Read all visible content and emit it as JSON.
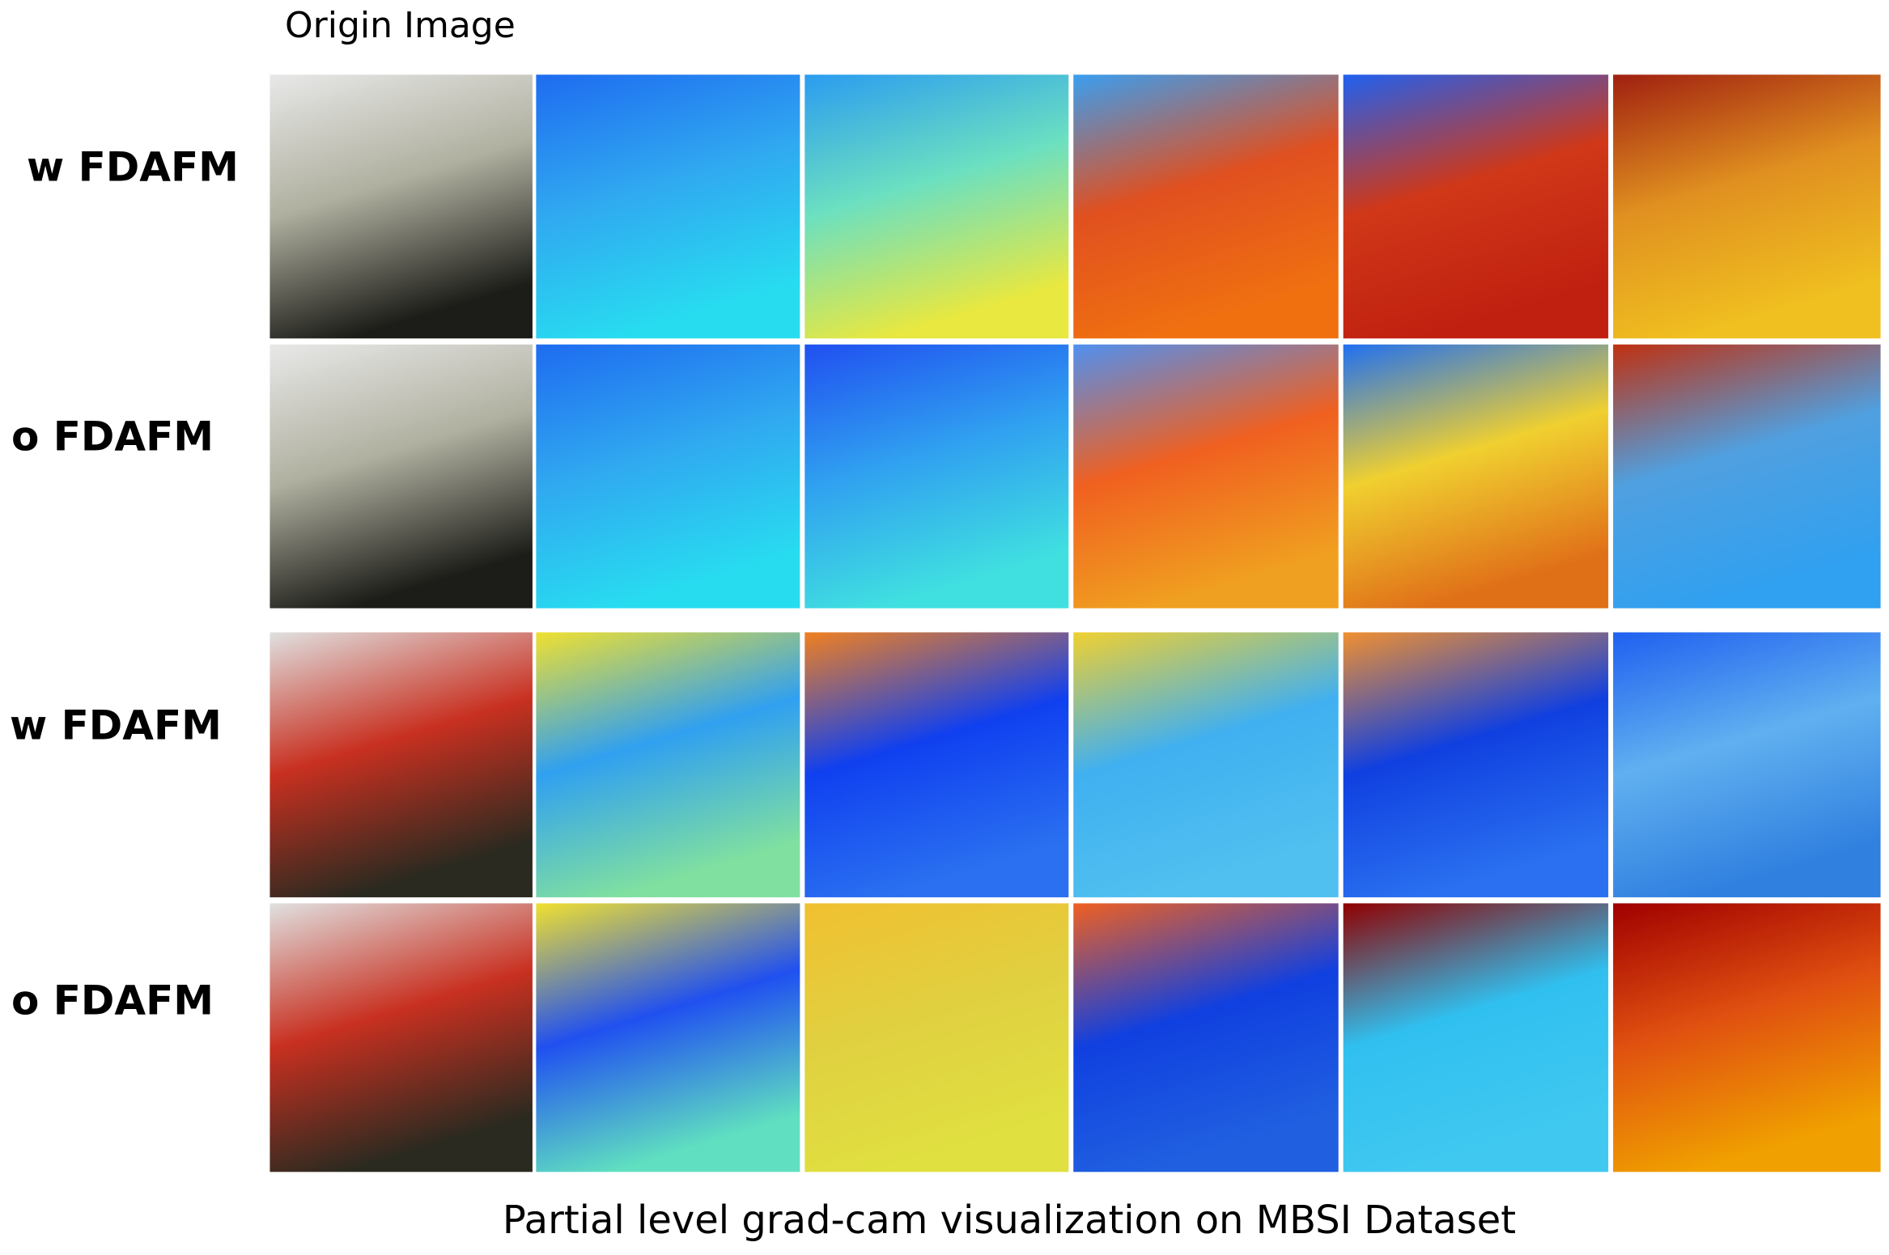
{
  "header": {
    "title": "Origin Image"
  },
  "rows": [
    {
      "label": "w FDAFM"
    },
    {
      "label": "o FDAFM"
    },
    {
      "label": "w FDAFM"
    },
    {
      "label": "o FDAFM"
    }
  ],
  "caption": "Partial level grad-cam visualization on MBSI Dataset"
}
